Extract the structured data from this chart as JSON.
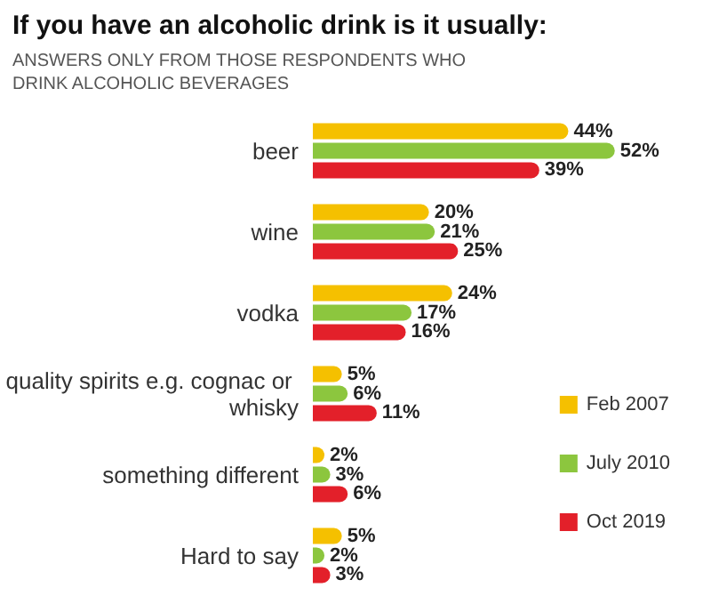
{
  "chart_data": {
    "type": "bar",
    "orientation": "horizontal",
    "title": "If you have an alcoholic drink is it usually:",
    "subtitle": "ANSWERS ONLY FROM THOSE RESPONDENTS WHO DRINK ALCOHOLIC BEVERAGES",
    "categories": [
      "beer",
      "wine",
      "vodka",
      "quality spirits e.g. cognac or whisky",
      "something different",
      "Hard to say"
    ],
    "series": [
      {
        "name": "Feb 2007",
        "color": "#f5c000",
        "values": [
          44,
          20,
          24,
          5,
          2,
          5
        ],
        "value_labels": [
          "44%",
          "20%",
          "24%",
          "5%",
          "2%",
          "5%"
        ]
      },
      {
        "name": "July 2010",
        "color": "#8cc63e",
        "values": [
          52,
          21,
          17,
          6,
          3,
          2
        ],
        "value_labels": [
          "52%",
          "21%",
          "17%",
          "6%",
          "3%",
          "2%"
        ]
      },
      {
        "name": "Oct 2019",
        "color": "#e3202a",
        "values": [
          39,
          25,
          16,
          11,
          6,
          3
        ],
        "value_labels": [
          "39%",
          "25%",
          "16%",
          "11%",
          "6%",
          "3%"
        ]
      }
    ],
    "legend": "bottom right",
    "grid": false
  }
}
